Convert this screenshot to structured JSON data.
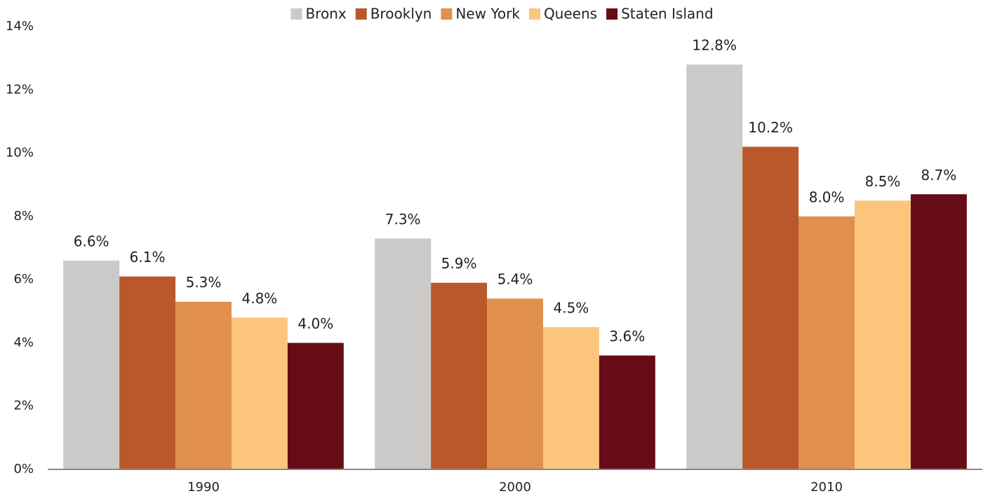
{
  "chart_data": {
    "type": "bar",
    "categories": [
      "1990",
      "2000",
      "2010"
    ],
    "series": [
      {
        "name": "Bronx",
        "color": "#cccac8",
        "values": [
          6.6,
          7.3,
          12.8
        ],
        "value_labels": [
          "6.6%",
          "7.3%",
          "12.8%"
        ]
      },
      {
        "name": "Brooklyn",
        "color": "#b9582b",
        "values": [
          6.1,
          5.9,
          10.2
        ],
        "value_labels": [
          "6.1%",
          "5.9%",
          "10.2%"
        ]
      },
      {
        "name": "New York",
        "color": "#e0904a",
        "values": [
          5.3,
          5.4,
          8.0
        ],
        "value_labels": [
          "5.3%",
          "5.4%",
          "8.0%"
        ]
      },
      {
        "name": "Queens",
        "color": "#fbc57e",
        "values": [
          4.8,
          4.5,
          8.5
        ],
        "value_labels": [
          "4.8%",
          "4.5%",
          "8.5%"
        ]
      },
      {
        "name": "Staten Island",
        "color": "#650c17",
        "values": [
          4.0,
          3.6,
          8.7
        ],
        "value_labels": [
          "4.0%",
          "3.6%",
          "8.7%"
        ]
      }
    ],
    "ylim": [
      0,
      14
    ],
    "yticks": [
      {
        "value": 0,
        "label": "0%"
      },
      {
        "value": 2,
        "label": "2%"
      },
      {
        "value": 4,
        "label": "4%"
      },
      {
        "value": 6,
        "label": "6%"
      },
      {
        "value": 8,
        "label": "8%"
      },
      {
        "value": 10,
        "label": "10%"
      },
      {
        "value": 12,
        "label": "12%"
      },
      {
        "value": 14,
        "label": "14%"
      }
    ],
    "grid": false,
    "legend": "top"
  }
}
